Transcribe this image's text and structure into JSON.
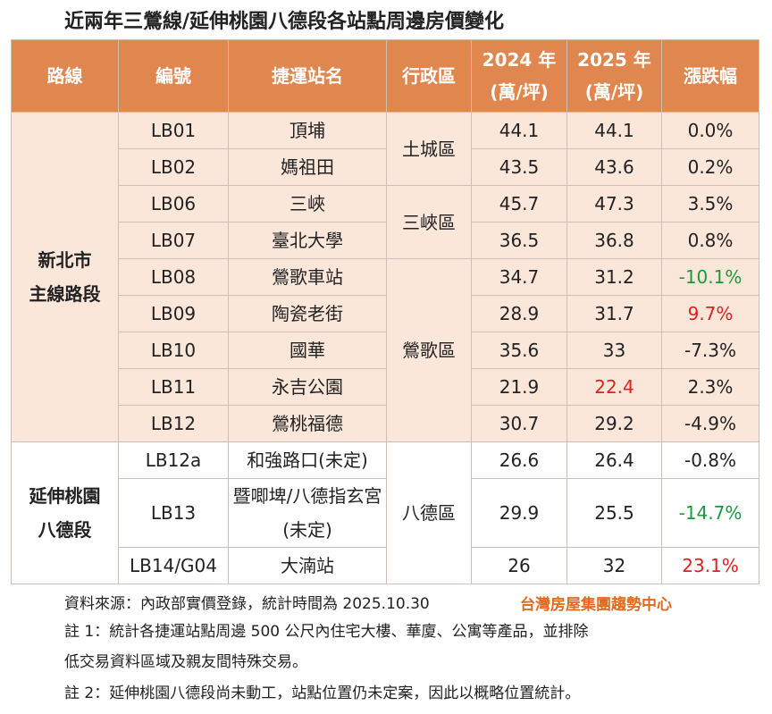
{
  "title": "近兩年三鶯線/延伸桃園八德段各站點周邊房價變化",
  "table": {
    "header": [
      "路線",
      "編號",
      "捷運站名",
      "行政區",
      "2024 年\n(萬/坪)",
      "2025 年\n(萬/坪)",
      "漲跌幅"
    ],
    "routes": [
      {
        "label": "新北市\n主線路段",
        "districts": [
          {
            "label": "土城區",
            "rows": [
              [
                "LB01",
                "頂埔",
                "44.1",
                "44.1",
                "0.0%"
              ],
              [
                "LB02",
                "媽祖田",
                "43.5",
                "43.6",
                "0.2%"
              ]
            ]
          },
          {
            "label": "三峽區",
            "rows": [
              [
                "LB06",
                "三峽",
                "45.7",
                "47.3",
                "3.5%"
              ],
              [
                "LB07",
                "臺北大學",
                "36.5",
                "36.8",
                "0.8%"
              ]
            ]
          },
          {
            "label": "鶯歌區",
            "rows": [
              [
                "LB08",
                "鶯歌車站",
                "34.7",
                "31.2",
                {
                  "text": "-10.1%",
                  "color": "#1a9a3c"
                }
              ],
              [
                "LB09",
                "陶瓷老街",
                "28.9",
                "31.7",
                {
                  "text": "9.7%",
                  "color": "#e02020"
                }
              ],
              [
                "LB10",
                "國華",
                "35.6",
                "33",
                "-7.3%"
              ],
              [
                "LB11",
                "永吉公園",
                "21.9",
                {
                  "text": "22.4",
                  "color": "#e02020"
                },
                "2.3%"
              ],
              [
                "LB12",
                "鶯桃福德",
                "30.7",
                "29.2",
                "-4.9%"
              ]
            ]
          }
        ]
      },
      {
        "label": "延伸桃園\n八德段",
        "districts": [
          {
            "label": "八德區",
            "rows": [
              [
                "LB12a",
                "和強路口(未定)",
                "26.6",
                "26.4",
                "-0.8%"
              ],
              [
                "LB13",
                "暨唧埤/八德指玄宮(未定)",
                "29.9",
                "25.5",
                {
                  "text": "-14.7%",
                  "color": "#1a9a3c"
                }
              ],
              [
                "LB14/G04",
                "大湳站",
                "26",
                "32",
                {
                  "text": "23.1%",
                  "color": "#e02020"
                }
              ]
            ]
          }
        ]
      }
    ]
  },
  "source": "資料來源：內政部實價登錄，統計時間為 2025.10.30",
  "logo": "台灣房屋集團趨勢中心",
  "notes": [
    "註 1：統計各捷運站點周邊 500 公尺內住宅大樓、華廈、公寓等產品，並排除\n低交易資料區域及親友間特殊交易。",
    "註 2：延伸桃園八德段尚未動工，站點位置仍未定案，因此以概略位置統計。"
  ]
}
